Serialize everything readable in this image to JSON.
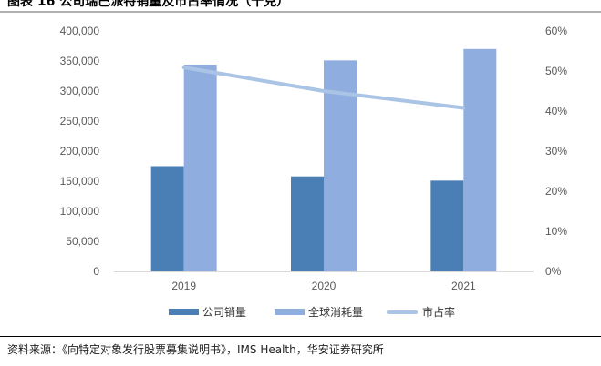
{
  "title": "图表 16 公司瑞巴派特销量及市占率情况（千克）",
  "source": "资料来源：《向特定对象发行股票募集说明书》，IMS Health，华安证券研究所",
  "colors": {
    "company_sales": "#4a7fb5",
    "global_consumption": "#8faedf",
    "market_share": "#a9c4e4",
    "axis": "#d9d9d9",
    "tick_text": "#595959"
  },
  "chart_data": {
    "type": "bar",
    "categories": [
      "2019",
      "2020",
      "2021"
    ],
    "series": [
      {
        "name": "公司销量",
        "type": "bar",
        "axis": "left",
        "values": [
          175000,
          158000,
          151000
        ]
      },
      {
        "name": "全球消耗量",
        "type": "bar",
        "axis": "left",
        "values": [
          344000,
          351000,
          370000
        ]
      },
      {
        "name": "市占率",
        "type": "line",
        "axis": "right",
        "values": [
          50.9,
          45.0,
          40.8
        ]
      }
    ],
    "y_left": {
      "ylim": [
        0,
        400000
      ],
      "ticks": [
        "0",
        "50,000",
        "100,000",
        "150,000",
        "200,000",
        "250,000",
        "300,000",
        "350,000",
        "400,000"
      ]
    },
    "y_right": {
      "ylim": [
        0,
        60
      ],
      "ticks": [
        "0%",
        "10%",
        "20%",
        "30%",
        "40%",
        "50%",
        "60%"
      ]
    },
    "legend_position": "bottom",
    "grid": false
  }
}
